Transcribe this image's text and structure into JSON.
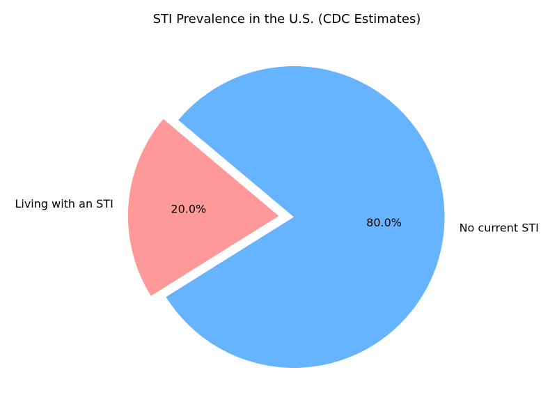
{
  "chart_data": {
    "type": "pie",
    "title": "STI Prevalence in the U.S. (CDC Estimates)",
    "categories": [
      "Living with an STI",
      "No current STI"
    ],
    "values": [
      20,
      80
    ],
    "value_labels": [
      "20.0%",
      "80.0%"
    ],
    "colors": [
      "#ff9999",
      "#66b3ff"
    ]
  }
}
